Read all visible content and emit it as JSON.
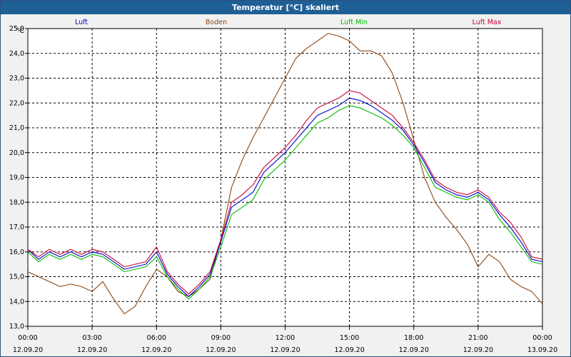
{
  "window": {
    "title": "Temperatur [°C] skaliert"
  },
  "colors": {
    "luft": "#0000cc",
    "boden": "#8b4513",
    "luft_min": "#00bb00",
    "luft_max": "#cc0033",
    "grid": "#000000"
  },
  "chart_data": {
    "type": "line",
    "title": "Temperatur [°C] skaliert",
    "ylabel": "°C",
    "xlabel": "",
    "ylim": [
      13.0,
      25.0
    ],
    "xlim": [
      0,
      24
    ],
    "grid": true,
    "legend_position": "top",
    "y_ticks": [
      "13,0",
      "14,0",
      "15,0",
      "16,0",
      "17,0",
      "18,0",
      "19,0",
      "20,0",
      "21,0",
      "22,0",
      "23,0",
      "24,0",
      "25,0"
    ],
    "x_ticks": [
      {
        "time": "00:00",
        "date": "12.09.20",
        "hour": 0
      },
      {
        "time": "03:00",
        "date": "12.09.20",
        "hour": 3
      },
      {
        "time": "06:00",
        "date": "12.09.20",
        "hour": 6
      },
      {
        "time": "09:00",
        "date": "12.09.20",
        "hour": 9
      },
      {
        "time": "12:00",
        "date": "12.09.20",
        "hour": 12
      },
      {
        "time": "15:00",
        "date": "12.09.20",
        "hour": 15
      },
      {
        "time": "18:00",
        "date": "12.09.20",
        "hour": 18
      },
      {
        "time": "21:00",
        "date": "12.09.20",
        "hour": 21
      },
      {
        "time": "00:00",
        "date": "13.09.20",
        "hour": 24
      }
    ],
    "series": [
      {
        "key": "luft",
        "name": "Luft",
        "x": [
          0,
          0.5,
          1,
          1.5,
          2,
          2.5,
          3,
          3.5,
          4,
          4.5,
          5,
          5.5,
          6,
          6.5,
          7,
          7.5,
          8,
          8.5,
          9,
          9.5,
          10,
          10.5,
          11,
          11.5,
          12,
          12.5,
          13,
          13.5,
          14,
          14.5,
          15,
          15.5,
          16,
          16.5,
          17,
          17.5,
          18,
          18.5,
          19,
          19.5,
          20,
          20.5,
          21,
          21.5,
          22,
          22.5,
          23,
          23.5,
          24
        ],
        "values": [
          16.1,
          15.7,
          16.0,
          15.8,
          16.0,
          15.8,
          16.0,
          15.9,
          15.6,
          15.3,
          15.4,
          15.5,
          16.0,
          15.1,
          14.6,
          14.2,
          14.6,
          15.1,
          16.4,
          17.8,
          18.1,
          18.4,
          19.2,
          19.6,
          20.0,
          20.5,
          21.0,
          21.5,
          21.7,
          21.9,
          22.2,
          22.1,
          21.9,
          21.6,
          21.3,
          20.9,
          20.3,
          19.6,
          18.8,
          18.5,
          18.3,
          18.2,
          18.4,
          18.1,
          17.5,
          17.0,
          16.4,
          15.7,
          15.6
        ]
      },
      {
        "key": "boden",
        "name": "Boden",
        "x": [
          0,
          0.5,
          1,
          1.5,
          2,
          2.5,
          3,
          3.5,
          4,
          4.5,
          5,
          5.5,
          6,
          6.5,
          7,
          7.5,
          8,
          8.5,
          9,
          9.5,
          10,
          10.5,
          11,
          11.5,
          12,
          12.5,
          13,
          13.5,
          14,
          14.5,
          15,
          15.5,
          16,
          16.5,
          17,
          17.5,
          18,
          18.5,
          19,
          19.5,
          20,
          20.5,
          21,
          21.5,
          22,
          22.5,
          23,
          23.5,
          24
        ],
        "values": [
          15.2,
          15.0,
          14.8,
          14.6,
          14.7,
          14.6,
          14.4,
          14.8,
          14.1,
          13.5,
          13.8,
          14.6,
          15.3,
          15.0,
          14.4,
          14.2,
          14.5,
          14.9,
          16.5,
          18.6,
          19.7,
          20.6,
          21.4,
          22.2,
          23.0,
          23.8,
          24.2,
          24.5,
          24.8,
          24.7,
          24.5,
          24.1,
          24.1,
          23.9,
          23.2,
          22.0,
          20.5,
          19.0,
          18.0,
          17.4,
          16.9,
          16.3,
          15.4,
          15.9,
          15.6,
          14.9,
          14.6,
          14.4,
          13.9
        ]
      },
      {
        "key": "luft_min",
        "name": "Luft Min",
        "x": [
          0,
          0.5,
          1,
          1.5,
          2,
          2.5,
          3,
          3.5,
          4,
          4.5,
          5,
          5.5,
          6,
          6.5,
          7,
          7.5,
          8,
          8.5,
          9,
          9.5,
          10,
          10.5,
          11,
          11.5,
          12,
          12.5,
          13,
          13.5,
          14,
          14.5,
          15,
          15.5,
          16,
          16.5,
          17,
          17.5,
          18,
          18.5,
          19,
          19.5,
          20,
          20.5,
          21,
          21.5,
          22,
          22.5,
          23,
          23.5,
          24
        ],
        "values": [
          16.0,
          15.6,
          15.9,
          15.7,
          15.9,
          15.7,
          15.9,
          15.8,
          15.5,
          15.2,
          15.3,
          15.4,
          15.8,
          15.0,
          14.5,
          14.1,
          14.5,
          15.0,
          16.2,
          17.5,
          17.8,
          18.1,
          18.9,
          19.3,
          19.7,
          20.2,
          20.7,
          21.2,
          21.4,
          21.7,
          21.9,
          21.8,
          21.6,
          21.4,
          21.1,
          20.7,
          20.2,
          19.4,
          18.6,
          18.4,
          18.2,
          18.1,
          18.3,
          18.0,
          17.3,
          16.8,
          16.2,
          15.6,
          15.5
        ]
      },
      {
        "key": "luft_max",
        "name": "Luft Max",
        "x": [
          0,
          0.5,
          1,
          1.5,
          2,
          2.5,
          3,
          3.5,
          4,
          4.5,
          5,
          5.5,
          6,
          6.5,
          7,
          7.5,
          8,
          8.5,
          9,
          9.5,
          10,
          10.5,
          11,
          11.5,
          12,
          12.5,
          13,
          13.5,
          14,
          14.5,
          15,
          15.5,
          16,
          16.5,
          17,
          17.5,
          18,
          18.5,
          19,
          19.5,
          20,
          20.5,
          21,
          21.5,
          22,
          22.5,
          23,
          23.5,
          24
        ],
        "values": [
          16.1,
          15.8,
          16.1,
          15.9,
          16.1,
          15.9,
          16.1,
          16.0,
          15.7,
          15.4,
          15.5,
          15.6,
          16.2,
          15.2,
          14.7,
          14.3,
          14.7,
          15.2,
          16.5,
          18.0,
          18.3,
          18.7,
          19.4,
          19.8,
          20.2,
          20.7,
          21.3,
          21.8,
          22.0,
          22.2,
          22.5,
          22.4,
          22.1,
          21.8,
          21.5,
          21.0,
          20.4,
          19.7,
          18.9,
          18.6,
          18.4,
          18.3,
          18.5,
          18.2,
          17.6,
          17.2,
          16.6,
          15.8,
          15.7
        ]
      }
    ]
  }
}
